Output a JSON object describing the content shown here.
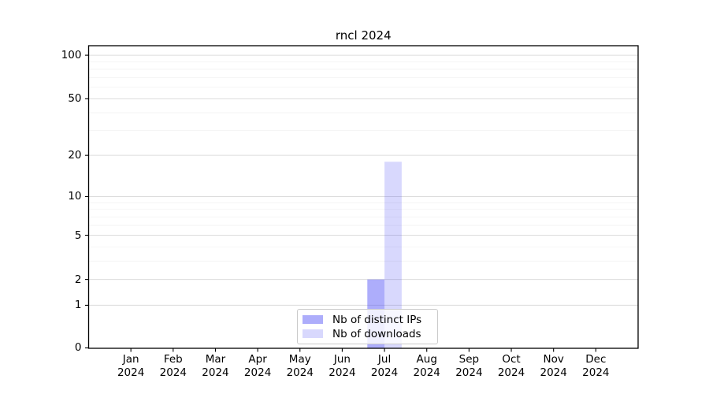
{
  "figure": {
    "background_color": "#ffffff",
    "axis_color": "#000000",
    "major_grid_color": "#dcdcdc",
    "minor_grid_color": "#f2f2f2"
  },
  "chart_data": {
    "type": "bar",
    "title": "rncl 2024",
    "x_categories": [
      {
        "month": "Jan",
        "year": "2024"
      },
      {
        "month": "Feb",
        "year": "2024"
      },
      {
        "month": "Mar",
        "year": "2024"
      },
      {
        "month": "Apr",
        "year": "2024"
      },
      {
        "month": "May",
        "year": "2024"
      },
      {
        "month": "Jun",
        "year": "2024"
      },
      {
        "month": "Jul",
        "year": "2024"
      },
      {
        "month": "Aug",
        "year": "2024"
      },
      {
        "month": "Sep",
        "year": "2024"
      },
      {
        "month": "Oct",
        "year": "2024"
      },
      {
        "month": "Nov",
        "year": "2024"
      },
      {
        "month": "Dec",
        "year": "2024"
      }
    ],
    "series": [
      {
        "name": "Nb of distinct IPs",
        "color": "rgba(60,60,245,0.42)",
        "color_hex_on_white": "#adadfb",
        "values": [
          0,
          0,
          0,
          0,
          0,
          0,
          2,
          0,
          0,
          0,
          0,
          0
        ]
      },
      {
        "name": "Nb of downloads",
        "color": "rgba(60,60,245,0.20)",
        "color_hex_on_white": "#d8d8fd",
        "values": [
          0,
          0,
          0,
          0,
          0,
          0,
          18,
          0,
          0,
          0,
          0,
          0
        ]
      }
    ],
    "y_scale": "log(1+x)",
    "y_ticks": [
      0,
      1,
      2,
      5,
      10,
      20,
      50,
      100
    ],
    "y_minor_ticks": [
      3,
      4,
      6,
      7,
      8,
      9,
      30,
      40,
      60,
      70,
      80,
      90
    ],
    "ylim": [
      0,
      116
    ],
    "grid": "on",
    "legend_position": "lower-center"
  }
}
